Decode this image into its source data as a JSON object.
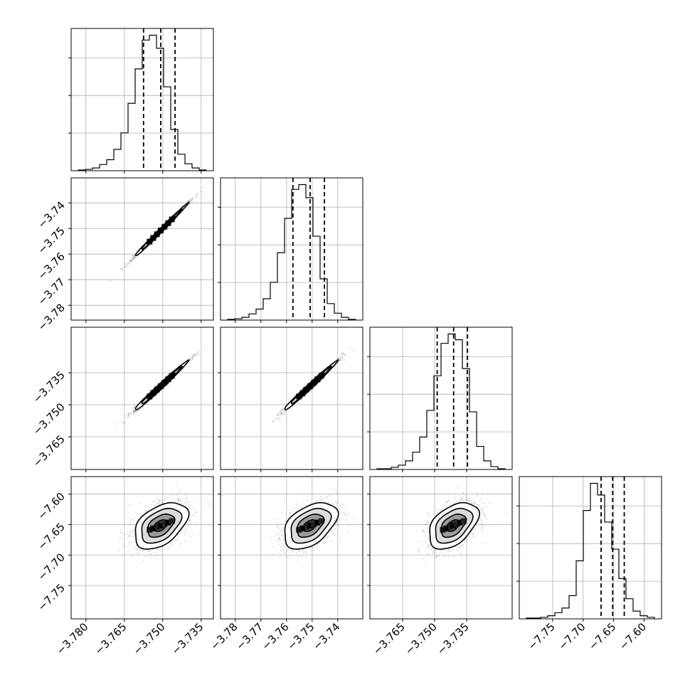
{
  "chart_data": {
    "type": "corner",
    "parameters": [
      {
        "range": [
          -3.783,
          -3.733
        ],
        "ticks": [
          {
            "v": -3.78,
            "label": "−3.780"
          },
          {
            "v": -3.765,
            "label": "−3.765"
          },
          {
            "v": -3.75,
            "label": "−3.750"
          },
          {
            "v": -3.735,
            "label": "−3.735"
          }
        ],
        "quantiles": [
          -3.7575,
          -3.7508,
          -3.7452
        ],
        "hist_counts": [
          1,
          2,
          4,
          9,
          16,
          31,
          55,
          98,
          148,
          190,
          197,
          178,
          122,
          60,
          24,
          10,
          4,
          1
        ]
      },
      {
        "range": [
          -3.783,
          -3.733
        ],
        "ticks": [
          {
            "v": -3.78,
            "label": "−3.78"
          },
          {
            "v": -3.77,
            "label": "−3.77"
          },
          {
            "v": -3.76,
            "label": "−3.76"
          },
          {
            "v": -3.75,
            "label": "−3.75"
          },
          {
            "v": -3.74,
            "label": "−3.74"
          }
        ],
        "quantiles": [
          -3.7575,
          -3.7508,
          -3.7452
        ],
        "hist_counts": [
          1,
          2,
          4,
          9,
          16,
          31,
          55,
          98,
          148,
          190,
          197,
          178,
          122,
          60,
          24,
          10,
          4,
          1
        ]
      },
      {
        "range": [
          -3.777,
          -3.717
        ],
        "ticks": [
          {
            "v": -3.765,
            "label": "−3.765"
          },
          {
            "v": -3.75,
            "label": "−3.750"
          },
          {
            "v": -3.735,
            "label": "−3.735"
          }
        ],
        "quantiles": [
          -3.7488,
          -3.7411,
          -3.7346
        ],
        "hist_counts": [
          1,
          1,
          3,
          6,
          12,
          24,
          45,
          82,
          130,
          175,
          188,
          180,
          140,
          80,
          32,
          12,
          4,
          1
        ]
      },
      {
        "range": [
          -7.793,
          -7.583
        ],
        "ticks": [
          {
            "v": -7.75,
            "label": "−7.75"
          },
          {
            "v": -7.7,
            "label": "−7.70"
          },
          {
            "v": -7.65,
            "label": "−7.65"
          },
          {
            "v": -7.6,
            "label": "−7.60"
          }
        ],
        "quantiles": [
          -7.6705,
          -7.6515,
          -7.6325
        ],
        "hist_counts": [
          1,
          1,
          2,
          4,
          8,
          14,
          30,
          75,
          140,
          175,
          160,
          125,
          90,
          52,
          26,
          10,
          4,
          2
        ]
      }
    ],
    "pairs": [
      {
        "row": 1,
        "col": 0,
        "mean": [
          -3.7508,
          -3.7508
        ],
        "std": [
          0.0052,
          0.0052
        ],
        "corr": 0.995
      },
      {
        "row": 2,
        "col": 0,
        "mean": [
          -3.7508,
          -3.7413
        ],
        "std": [
          0.0052,
          0.0058
        ],
        "corr": 0.99
      },
      {
        "row": 2,
        "col": 1,
        "mean": [
          -3.7508,
          -3.7413
        ],
        "std": [
          0.0052,
          0.0058
        ],
        "corr": 0.99
      },
      {
        "row": 3,
        "col": 0,
        "mean": [
          -3.7508,
          -7.6515
        ],
        "std": [
          0.0052,
          0.019
        ],
        "corr": 0.45
      },
      {
        "row": 3,
        "col": 1,
        "mean": [
          -3.7508,
          -7.6515
        ],
        "std": [
          0.0052,
          0.019
        ],
        "corr": 0.45
      },
      {
        "row": 3,
        "col": 2,
        "mean": [
          -3.7413,
          -7.6515
        ],
        "std": [
          0.0058,
          0.019
        ],
        "corr": 0.45
      }
    ],
    "contour_levels_sigma": [
      0.5,
      1.0,
      1.5,
      2.0
    ],
    "grid": true
  }
}
